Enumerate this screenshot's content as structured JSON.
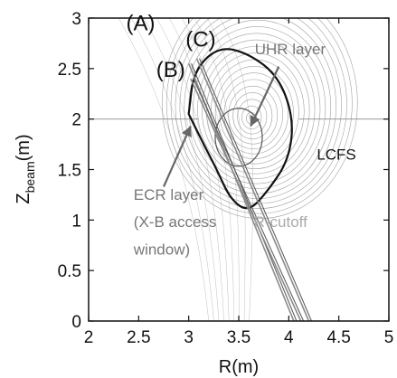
{
  "chart_data": {
    "type": "line",
    "xlabel": "R(m)",
    "ylabel": {
      "main": "Z",
      "sub": "beam",
      "unit": "(m)"
    },
    "xlim": [
      2,
      5
    ],
    "ylim": [
      0,
      3
    ],
    "xticks": [
      "2",
      "2.5",
      "3",
      "3.5",
      "4",
      "4.5",
      "5"
    ],
    "yticks": [
      "0",
      "0.5",
      "1",
      "1.5",
      "2",
      "2.5",
      "3"
    ],
    "grid": false,
    "beam_labels": [
      {
        "text": "(A)",
        "x": 2.52,
        "y": 2.88
      },
      {
        "text": "(B)",
        "x": 2.82,
        "y": 2.42
      },
      {
        "text": "(C)",
        "x": 3.12,
        "y": 2.72
      }
    ],
    "beams": [
      {
        "name": "A",
        "points": [
          [
            3.0,
            2.55
          ],
          [
            4.05,
            0.0
          ]
        ]
      },
      {
        "name": "B",
        "points": [
          [
            3.02,
            2.4
          ],
          [
            4.12,
            0.0
          ]
        ]
      },
      {
        "name": "C",
        "points": [
          [
            3.08,
            2.6
          ],
          [
            4.2,
            0.0
          ]
        ]
      }
    ],
    "lcfs": {
      "points": [
        [
          3.0,
          2.05
        ],
        [
          3.05,
          2.48
        ],
        [
          3.3,
          2.72
        ],
        [
          3.6,
          2.65
        ],
        [
          3.9,
          2.42
        ],
        [
          4.05,
          2.0
        ],
        [
          4.0,
          1.6
        ],
        [
          3.8,
          1.3
        ],
        [
          3.6,
          1.08
        ],
        [
          3.42,
          1.2
        ],
        [
          3.28,
          1.5
        ],
        [
          3.15,
          1.75
        ],
        [
          3.0,
          2.05
        ]
      ]
    },
    "annotations": [
      {
        "text": "UHR layer",
        "x": 3.66,
        "y": 2.64,
        "color": "#777777"
      },
      {
        "text": "LCFS",
        "x": 4.28,
        "y": 1.6,
        "color": "#111111"
      },
      {
        "text": "ECR layer",
        "x": 2.45,
        "y": 1.2,
        "color": "#777777"
      },
      {
        "text": "(X-B access",
        "x": 2.45,
        "y": 0.93,
        "color": "#777777"
      },
      {
        "text": "window)",
        "x": 2.45,
        "y": 0.66,
        "color": "#777777"
      },
      {
        "text": "R-cutoff",
        "x": 3.65,
        "y": 0.93,
        "color": "#aaaaaa"
      }
    ],
    "colors": {
      "axis": "#111111",
      "contour": "#8a8a8a",
      "lcfs": "#111111",
      "beam": "#8a8a8a",
      "arrow": "#666666",
      "ecr_layer": "#555555"
    }
  }
}
